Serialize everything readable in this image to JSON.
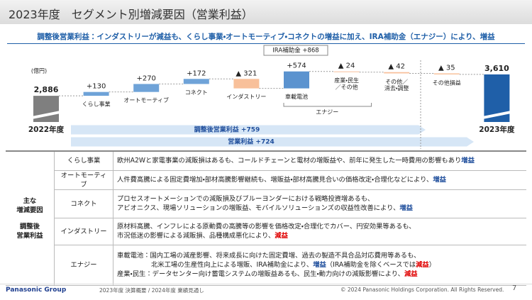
{
  "header": {
    "title": "2023年度　セグメント別増減要因（営業利益）",
    "subtitle": "調整後営業利益：インダストリーが減益も、くらし事業・オートモーティブ・コネクトの増益に加え、IRA補助金（エナジー）により、増益"
  },
  "chart_data": {
    "type": "waterfall",
    "unit": "(億円)",
    "categories": [
      "2022年度",
      "くらし事業",
      "オートモーティブ",
      "コネクト",
      "インダストリー",
      "車載電池",
      "産業・民生\n／その他",
      "その他／\n消去・調整",
      "その他損益",
      "2023年度"
    ],
    "values": [
      2886,
      130,
      270,
      172,
      -321,
      574,
      -24,
      -42,
      -35,
      3610
    ],
    "value_labels": [
      "2,886",
      "+130",
      "+270",
      "+172",
      "▲ 321",
      "+574",
      "▲ 24",
      "▲ 42",
      "▲ 35",
      "3,610"
    ],
    "colors": [
      "#7f7f7f",
      "#6fa3d8",
      "#6fa3d8",
      "#6fa3d8",
      "#f8c09a",
      "#5b93cf",
      "#f8c09a",
      "#f8c09a",
      "#f8c09a",
      "#1f5fa8"
    ],
    "ylim": [
      2000,
      3800
    ],
    "annotations": {
      "ira": "IRA補助金 +868",
      "energy": "エナジー",
      "adjusted": "調整後営業利益 +759",
      "operating": "営業利益 +724"
    }
  },
  "table": {
    "side_label": [
      "主な\n増減要因",
      "調整後\n営業利益"
    ],
    "rows": [
      {
        "segment": "くらし事業",
        "lines": [
          [
            "欧州A2Wと家電事業の減販損はあるも、コールドチェーンと電材の増販益や、前年に発生した一時費用の影響もあり",
            "増益"
          ]
        ]
      },
      {
        "segment": "オートモーティブ",
        "lines": [
          [
            "人件費高騰による固定費増加・部材高騰影響継続も、増販益・部材高騰見合いの価格改定・合理化などにより、",
            "増益"
          ]
        ]
      },
      {
        "segment": "コネクト",
        "lines": [
          [
            "プロセスオートメーションでの減販損及びブルーヨンダーにおける戦略投資増あるも、"
          ],
          [
            "アビオニクス、現場ソリューションの増販益、モバイルソリューションズの収益性改善により、",
            "増益"
          ]
        ]
      },
      {
        "segment": "インダストリー",
        "lines": [
          [
            "原材料高騰、インフレによる原動費の高騰等の影響を価格改定・合理化でカバー、円安効果等あるも、"
          ],
          [
            "市況低迷の影響による減販損、品種構成悪化により、",
            "減益"
          ]
        ]
      },
      {
        "segment": "エナジー",
        "lines": [
          [
            "車載電池：国内工場の減産影響、将来成長に向けた固定費増、過去の製造不具合品対応費用等あるも、"
          ],
          [
            "北米工場の生産性向上による増販、IRA補助金により、",
            "増益",
            "（IRA補助金を除くベースでは",
            "減益",
            "）"
          ],
          [
            "産業・民生：データセンター向け蓄電システムの増販益あるも、民生・動力向けの減販影響により、",
            "減益"
          ]
        ]
      }
    ]
  },
  "footer": {
    "brand": "Panasonic Group",
    "doc": "2023年度 決算概要 / 2024年度 業績見通し",
    "copyright": "© 2024 Panasonic Holdings Corporation. All Rights Reserved.",
    "page": "7"
  }
}
